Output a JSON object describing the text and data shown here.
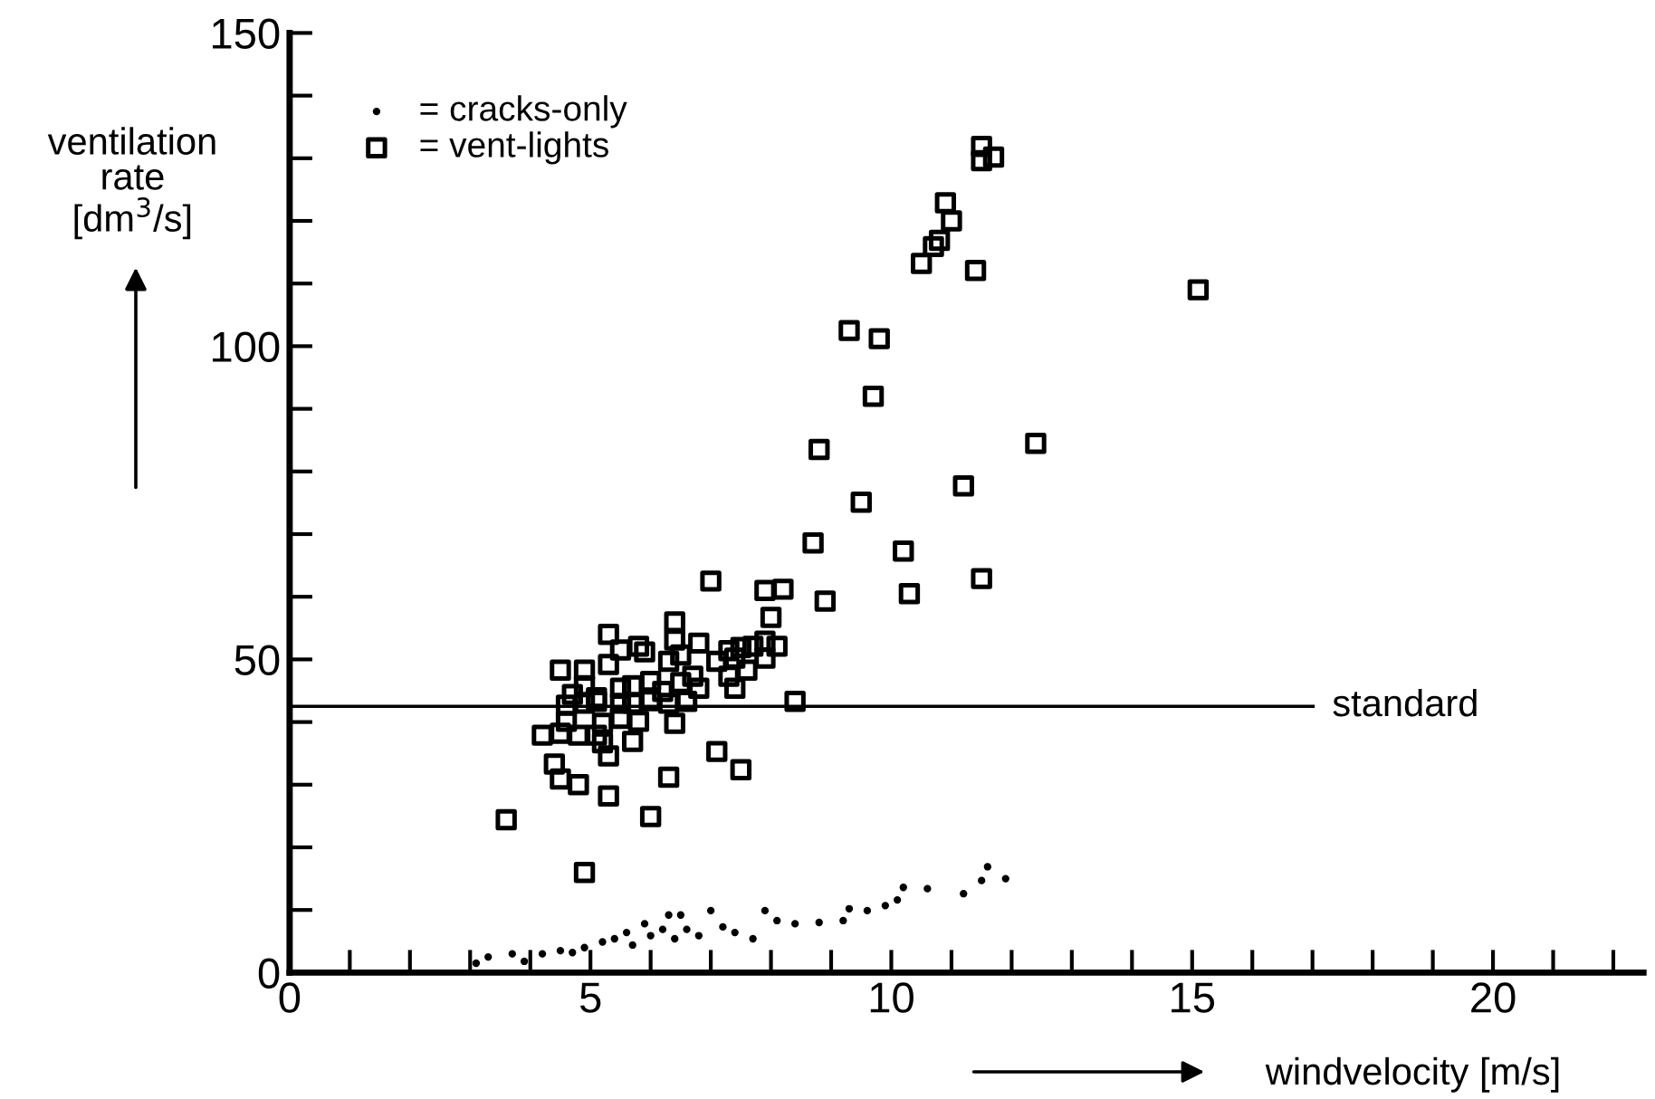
{
  "chart_data": {
    "type": "scatter",
    "xlabel": "windvelocity [m/s]",
    "ylabel": "ventilation\nrate\n[dm$^{3}$/s]",
    "xlim": [
      0,
      22.5
    ],
    "ylim": [
      0,
      150
    ],
    "xticks": [
      0,
      {
        "value": 1,
        "label": null
      },
      {
        "value": 2,
        "label": null
      },
      {
        "value": 3,
        "label": null
      },
      {
        "value": 4,
        "label": null
      },
      5,
      {
        "value": 6,
        "label": null
      },
      {
        "value": 7,
        "label": null
      },
      {
        "value": 8,
        "label": null
      },
      {
        "value": 9,
        "label": null
      },
      10,
      {
        "value": 11,
        "label": null
      },
      {
        "value": 12,
        "label": null
      },
      {
        "value": 13,
        "label": null
      },
      {
        "value": 14,
        "label": null
      },
      15,
      {
        "value": 16,
        "label": null
      },
      {
        "value": 17,
        "label": null
      },
      {
        "value": 18,
        "label": null
      },
      {
        "value": 19,
        "label": null
      },
      20,
      {
        "value": 21,
        "label": null
      },
      {
        "value": 22,
        "label": null
      }
    ],
    "yticks": [
      0,
      {
        "value": 10,
        "label": null
      },
      {
        "value": 20,
        "label": null
      },
      {
        "value": 30,
        "label": null
      },
      {
        "value": 40,
        "label": null
      },
      50,
      {
        "value": 60,
        "label": null
      },
      {
        "value": 70,
        "label": null
      },
      {
        "value": 80,
        "label": null
      },
      {
        "value": 90,
        "label": null
      },
      100,
      {
        "value": 110,
        "label": null
      },
      {
        "value": 120,
        "label": null
      },
      {
        "value": 130,
        "label": null
      },
      {
        "value": 140,
        "label": null
      },
      150
    ],
    "grid": false,
    "legend": "top left",
    "ref_lines": [
      {
        "axis": "y",
        "value": 42.5,
        "label": "standard",
        "color": "#000000",
        "line_style": "solid"
      }
    ],
    "series": [
      {
        "name": "= cracks-only",
        "color": "#000000",
        "marker": "circle",
        "x": [
          3.1,
          3.3,
          3.7,
          3.9,
          4.2,
          4.5,
          4.7,
          4.9,
          5.2,
          5.4,
          5.6,
          5.7,
          5.9,
          6.0,
          6.2,
          6.3,
          6.4,
          6.5,
          6.6,
          6.8,
          7.0,
          7.2,
          7.4,
          7.7,
          7.9,
          8.1,
          8.4,
          8.8,
          9.2,
          9.3,
          9.6,
          9.9,
          10.1,
          10.2,
          10.6,
          11.2,
          11.5,
          11.6,
          11.9
        ],
        "values": [
          1.5,
          2.5,
          3.0,
          1.8,
          3.0,
          3.5,
          3.2,
          4.0,
          4.9,
          5.4,
          6.4,
          4.4,
          7.8,
          5.9,
          6.9,
          9.2,
          5.4,
          9.2,
          6.9,
          5.9,
          9.9,
          7.3,
          6.4,
          5.4,
          9.9,
          8.3,
          7.8,
          8.0,
          8.3,
          10.2,
          9.9,
          10.7,
          11.6,
          13.6,
          13.4,
          12.6,
          14.7,
          16.9,
          15.0
        ]
      },
      {
        "name": "= vent-lights",
        "color": "#000000",
        "marker": "square",
        "x": [
          11.5,
          11.7,
          11.5,
          10.9,
          11.0,
          10.8,
          10.7,
          10.5,
          11.4,
          9.3,
          9.8,
          9.7,
          8.8,
          12.4,
          11.2,
          9.5,
          8.7,
          10.2,
          11.5,
          10.3,
          8.9,
          7.9,
          8.2,
          15.1,
          7.0,
          8.0,
          5.3,
          6.4,
          6.4,
          5.5,
          5.8,
          5.9,
          6.8,
          7.3,
          7.5,
          7.7,
          7.9,
          8.1,
          4.5,
          4.9,
          5.3,
          6.3,
          6.5,
          7.1,
          7.4,
          7.6,
          7.9,
          4.9,
          4.7,
          5.1,
          5.5,
          5.7,
          6.0,
          6.2,
          6.5,
          6.7,
          6.8,
          7.3,
          7.4,
          4.6,
          4.9,
          5.1,
          5.5,
          5.7,
          6.0,
          6.3,
          6.6,
          8.4,
          4.6,
          5.2,
          5.5,
          5.8,
          6.4,
          4.2,
          4.5,
          4.8,
          5.1,
          5.2,
          5.7,
          5.3,
          7.1,
          7.5,
          4.4,
          4.5,
          4.8,
          6.3,
          5.3,
          6.0,
          3.6,
          4.9
        ],
        "values": [
          131.9,
          130.2,
          129.6,
          122.9,
          120.0,
          116.9,
          115.9,
          113.2,
          112.1,
          102.5,
          101.2,
          92.0,
          83.5,
          84.5,
          77.7,
          75.1,
          68.6,
          67.3,
          62.9,
          60.5,
          59.3,
          61.0,
          61.2,
          109.0,
          62.5,
          56.7,
          54.0,
          56.0,
          53.1,
          51.5,
          52.1,
          51.2,
          52.6,
          51.4,
          51.9,
          52.1,
          52.9,
          52.1,
          48.3,
          48.3,
          49.2,
          49.7,
          50.7,
          49.7,
          50.2,
          48.3,
          50.2,
          45.8,
          44.4,
          43.9,
          45.4,
          45.8,
          46.5,
          44.9,
          46.3,
          47.3,
          45.4,
          47.3,
          45.4,
          42.7,
          43.0,
          43.3,
          43.0,
          43.0,
          43.4,
          43.0,
          43.3,
          43.3,
          40.1,
          39.8,
          40.6,
          40.1,
          39.8,
          37.9,
          38.2,
          37.9,
          37.9,
          36.7,
          36.9,
          34.6,
          35.3,
          32.4,
          33.3,
          30.9,
          30.0,
          31.2,
          28.2,
          24.9,
          24.4,
          16.0
        ]
      }
    ]
  }
}
